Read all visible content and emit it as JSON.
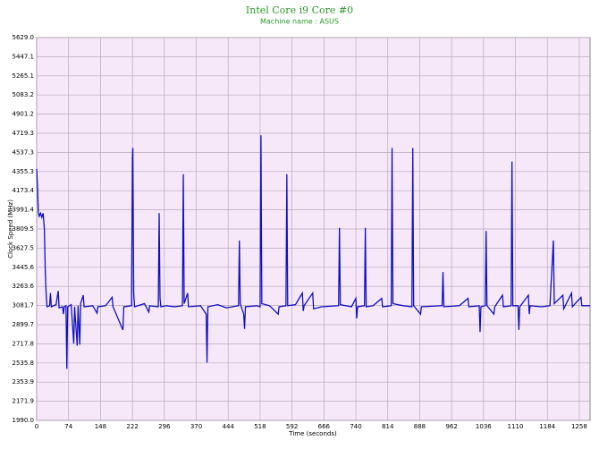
{
  "chart_data": {
    "type": "line",
    "title": "Intel Core i9 Core #0",
    "subtitle": "Machine name : ASUS",
    "x_label": "Time (seconds)",
    "y_label": "Clock Speed (MHz)",
    "color": "#1010c0",
    "background": "#f6e8f8",
    "grid": true,
    "xlim": [
      0,
      1283
    ],
    "xticks": [
      0,
      74,
      148,
      222,
      296,
      370,
      444,
      518,
      592,
      666,
      740,
      814,
      888,
      962,
      1036,
      1110,
      1184,
      1258
    ],
    "ylim": [
      1990,
      5629
    ],
    "yticks": [
      {
        "value": 1990,
        "label": "1990.0"
      },
      {
        "value": 2171.9,
        "label": "2171.9"
      },
      {
        "value": 2353.9,
        "label": "2353.9"
      },
      {
        "value": 2535.8,
        "label": "2535.8"
      },
      {
        "value": 2717.8,
        "label": "2717.8"
      },
      {
        "value": 2899.7,
        "label": "2899.7"
      },
      {
        "value": 3081.7,
        "label": "3081.7"
      },
      {
        "value": 3263.6,
        "label": "3263.6"
      },
      {
        "value": 3445.6,
        "label": "3445.6"
      },
      {
        "value": 3627.5,
        "label": "3627.5"
      },
      {
        "value": 3809.5,
        "label": "3809.5"
      },
      {
        "value": 3991.4,
        "label": "3991.4"
      },
      {
        "value": 4173.4,
        "label": "4173.4"
      },
      {
        "value": 4355.3,
        "label": "4355.3"
      },
      {
        "value": 4537.3,
        "label": "4537.3"
      },
      {
        "value": 4719.3,
        "label": "4719.3"
      },
      {
        "value": 4901.2,
        "label": "4901.2"
      },
      {
        "value": 5083.2,
        "label": "5083.2"
      },
      {
        "value": 5265.1,
        "label": "5265.1"
      },
      {
        "value": 5447.1,
        "label": "5447.1"
      },
      {
        "value": 5629,
        "label": "5629.0"
      }
    ],
    "x": [
      0,
      2,
      4,
      6,
      9,
      12,
      15,
      18,
      20,
      22,
      24,
      30,
      32,
      34,
      45,
      50,
      52,
      60,
      62,
      64,
      68,
      70,
      72,
      80,
      86,
      88,
      94,
      96,
      100,
      102,
      108,
      110,
      130,
      140,
      142,
      160,
      175,
      177,
      200,
      202,
      220,
      222,
      223,
      225,
      227,
      250,
      260,
      262,
      282,
      284,
      286,
      288,
      300,
      320,
      338,
      340,
      342,
      350,
      352,
      380,
      393,
      395,
      397,
      420,
      440,
      468,
      470,
      472,
      480,
      482,
      484,
      510,
      518,
      520,
      522,
      540,
      560,
      562,
      578,
      580,
      582,
      600,
      616,
      618,
      620,
      640,
      642,
      660,
      700,
      702,
      704,
      730,
      740,
      742,
      744,
      760,
      762,
      764,
      780,
      800,
      802,
      822,
      824,
      826,
      850,
      870,
      872,
      874,
      890,
      892,
      940,
      942,
      944,
      980,
      1000,
      1002,
      1026,
      1028,
      1030,
      1040,
      1042,
      1044,
      1060,
      1062,
      1080,
      1082,
      1100,
      1102,
      1104,
      1116,
      1118,
      1120,
      1140,
      1142,
      1144,
      1170,
      1190,
      1198,
      1200,
      1220,
      1222,
      1240,
      1242,
      1262,
      1264,
      1283
    ],
    "values": [
      4380,
      4200,
      3960,
      3930,
      3960,
      3920,
      3960,
      3800,
      3400,
      3200,
      3070,
      3080,
      3200,
      3070,
      3090,
      3220,
      3060,
      3070,
      3000,
      3070,
      3080,
      2480,
      3070,
      3090,
      2720,
      3070,
      2700,
      3080,
      2710,
      3100,
      3180,
      3070,
      3080,
      3010,
      3070,
      3080,
      3160,
      3070,
      2850,
      3070,
      3080,
      4480,
      4580,
      3200,
      3070,
      3100,
      3020,
      3080,
      3070,
      3960,
      3150,
      3070,
      3080,
      3070,
      3080,
      4330,
      3100,
      3200,
      3070,
      3080,
      3000,
      2540,
      3070,
      3090,
      3060,
      3080,
      3700,
      3100,
      3000,
      2860,
      3070,
      3080,
      3070,
      4700,
      3100,
      3080,
      3000,
      3070,
      3080,
      4330,
      3080,
      3090,
      3200,
      3030,
      3080,
      3200,
      3050,
      3070,
      3080,
      3820,
      3090,
      3070,
      3150,
      2960,
      3070,
      3080,
      3820,
      3070,
      3080,
      3150,
      3070,
      3080,
      4580,
      3100,
      3080,
      3070,
      4580,
      3080,
      3000,
      3070,
      3080,
      3400,
      3070,
      3080,
      3150,
      3070,
      3080,
      2830,
      3070,
      3080,
      3790,
      3080,
      3000,
      3070,
      3180,
      3070,
      3080,
      4450,
      3080,
      3080,
      2850,
      3070,
      3180,
      3000,
      3080,
      3070,
      3080,
      3700,
      3100,
      3180,
      3050,
      3200,
      3070,
      3160,
      3080,
      3080
    ]
  }
}
